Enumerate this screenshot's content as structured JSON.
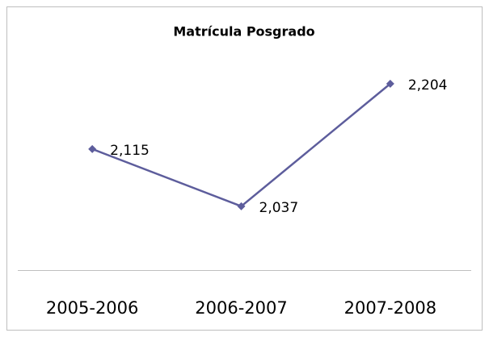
{
  "chart_data": {
    "type": "line",
    "title": "Matrícula Posgrado",
    "categories": [
      "2005-2006",
      "2006-2007",
      "2007-2008"
    ],
    "series": [
      {
        "name": "Matrícula Posgrado",
        "color": "#5d5d9c",
        "values": [
          2115,
          2037,
          2204
        ],
        "value_labels": [
          "2,115",
          "2,037",
          "2,204"
        ]
      }
    ],
    "ylim": [
      1950,
      2250
    ]
  }
}
